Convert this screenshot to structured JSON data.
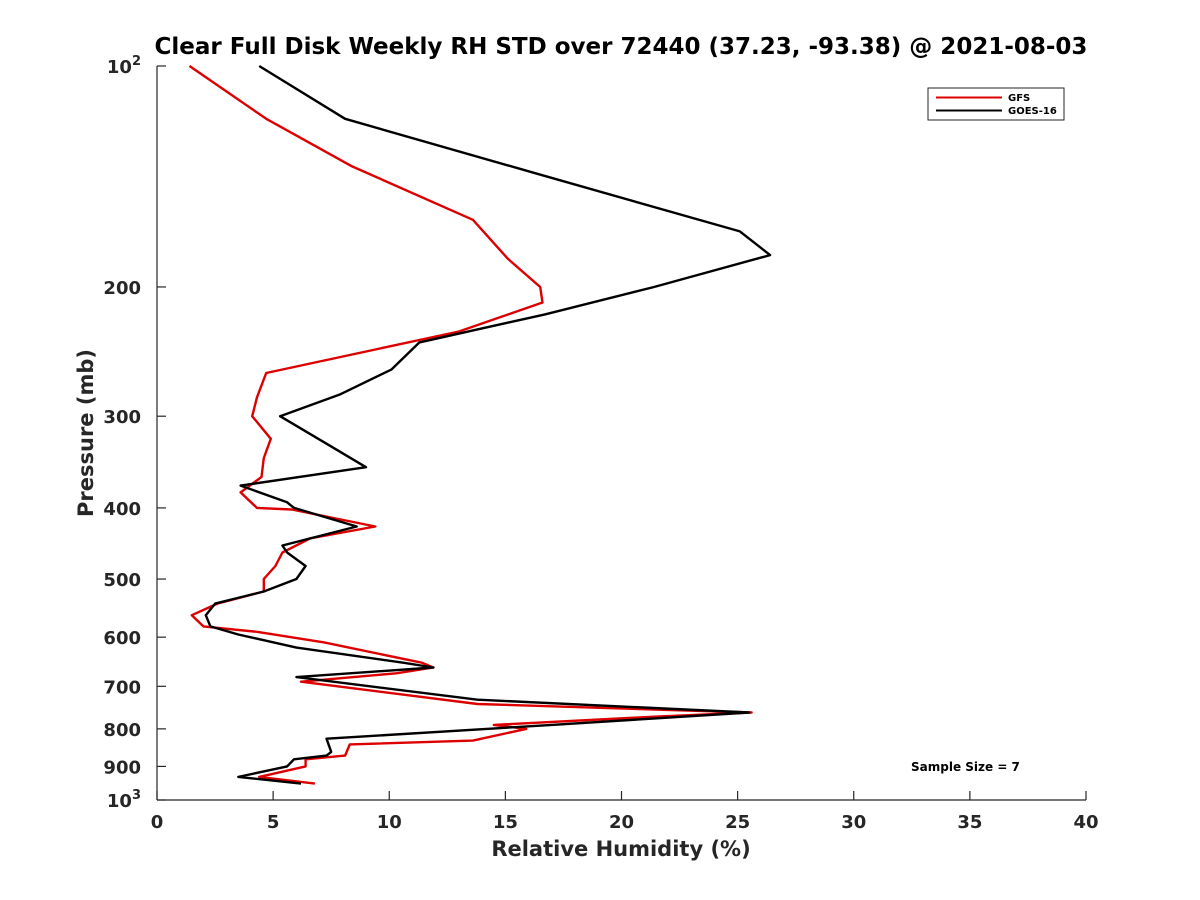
{
  "chart_data": {
    "type": "line",
    "title": "Clear Full Disk Weekly RH STD over 72440 (37.23, -93.38) @ 2021-08-03",
    "xlabel": "Relative Humidity (%)",
    "ylabel": "Pressure (mb)",
    "xlim": [
      0,
      40
    ],
    "ylim": [
      100,
      1000
    ],
    "yscale": "log",
    "y_reversed": true,
    "grid": false,
    "legend_position": "top-right",
    "xticks": [
      0,
      5,
      10,
      15,
      20,
      25,
      30,
      35,
      40
    ],
    "xtick_labels": [
      "0",
      "5",
      "10",
      "15",
      "20",
      "25",
      "30",
      "35",
      "40"
    ],
    "yticks": [
      100,
      200,
      300,
      400,
      500,
      600,
      700,
      800,
      900,
      1000
    ],
    "ytick_labels": [
      {
        "base": "10",
        "sup": "2"
      },
      {
        "base": "200",
        "sup": ""
      },
      {
        "base": "300",
        "sup": ""
      },
      {
        "base": "400",
        "sup": ""
      },
      {
        "base": "500",
        "sup": ""
      },
      {
        "base": "600",
        "sup": ""
      },
      {
        "base": "700",
        "sup": ""
      },
      {
        "base": "800",
        "sup": ""
      },
      {
        "base": "900",
        "sup": ""
      },
      {
        "base": "10",
        "sup": "3"
      }
    ],
    "series": [
      {
        "name": "GFS",
        "color": "#dd0000",
        "x": [
          1.4,
          4.7,
          8.4,
          13.6,
          15.1,
          16.5,
          16.6,
          13.0,
          4.7,
          4.3,
          4.1,
          4.9,
          4.6,
          4.5,
          3.6,
          4.3,
          5.8,
          9.4,
          6.6,
          5.4,
          5.1,
          4.6,
          4.6,
          2.6,
          1.5,
          2.0,
          4.3,
          7.2,
          11.4,
          11.9,
          10.3,
          6.2,
          13.8,
          25.6,
          21.4,
          14.5,
          15.9,
          13.6,
          8.3,
          8.1,
          6.4,
          6.4,
          4.4,
          6.8
        ],
        "y": [
          100,
          118,
          137,
          162,
          183,
          200,
          210,
          230,
          262,
          283,
          300,
          322,
          342,
          363,
          381,
          400,
          402,
          424,
          440,
          460,
          480,
          500,
          520,
          540,
          560,
          580,
          590,
          610,
          650,
          660,
          672,
          690,
          740,
          760,
          770,
          790,
          800,
          830,
          840,
          870,
          880,
          900,
          930,
          950
        ]
      },
      {
        "name": "GOES-16",
        "color": "#000000",
        "x": [
          4.4,
          8.1,
          16.3,
          25.1,
          26.4,
          21.4,
          16.7,
          11.3,
          10.1,
          7.9,
          5.3,
          7.3,
          9.0,
          3.6,
          5.6,
          5.9,
          8.6,
          5.4,
          5.6,
          6.4,
          6.0,
          4.6,
          2.5,
          2.1,
          2.3,
          3.5,
          6.0,
          10.6,
          11.9,
          6.0,
          13.8,
          25.5,
          17.0,
          7.3,
          7.5,
          7.3,
          5.9,
          5.6,
          3.5,
          6.2
        ],
        "y": [
          100,
          118,
          140,
          168,
          181,
          200,
          218,
          238,
          259,
          280,
          300,
          327,
          352,
          373,
          393,
          400,
          424,
          450,
          460,
          480,
          500,
          520,
          540,
          560,
          580,
          595,
          620,
          650,
          660,
          680,
          730,
          760,
          790,
          825,
          860,
          870,
          880,
          900,
          930,
          950
        ]
      }
    ],
    "annotations": [
      {
        "text": "Sample Size = 7"
      }
    ]
  }
}
